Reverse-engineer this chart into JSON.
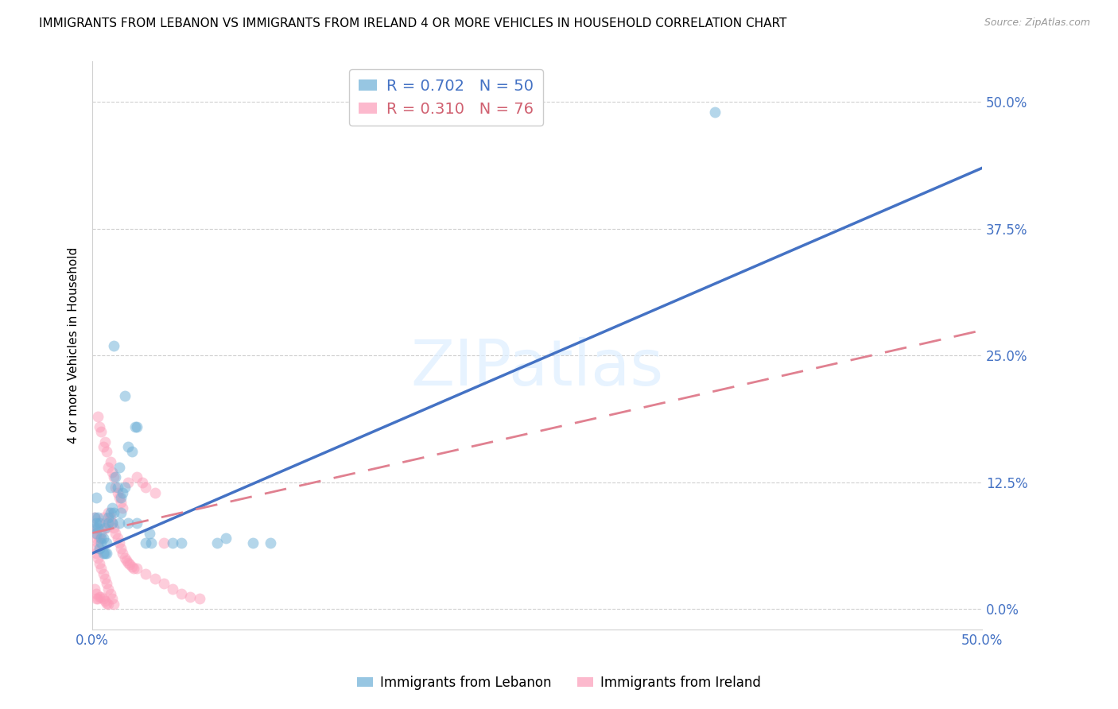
{
  "title": "IMMIGRANTS FROM LEBANON VS IMMIGRANTS FROM IRELAND 4 OR MORE VEHICLES IN HOUSEHOLD CORRELATION CHART",
  "source": "Source: ZipAtlas.com",
  "ylabel": "4 or more Vehicles in Household",
  "xlim": [
    0.0,
    0.5
  ],
  "ylim": [
    -0.02,
    0.54
  ],
  "ytick_labels": [
    "0.0%",
    "12.5%",
    "25.0%",
    "37.5%",
    "50.0%"
  ],
  "ytick_values": [
    0.0,
    0.125,
    0.25,
    0.375,
    0.5
  ],
  "xtick_values": [
    0.0,
    0.1,
    0.2,
    0.3,
    0.4,
    0.5
  ],
  "lebanon_color": "#6baed6",
  "ireland_color": "#fc9cb9",
  "lebanon_R": 0.702,
  "lebanon_N": 50,
  "ireland_R": 0.31,
  "ireland_N": 76,
  "watermark": "ZIPatlas",
  "legend_label_lebanon": "Immigrants from Lebanon",
  "legend_label_ireland": "Immigrants from Ireland",
  "lebanon_scatter": [
    [
      0.001,
      0.09
    ],
    [
      0.002,
      0.085
    ],
    [
      0.002,
      0.11
    ],
    [
      0.003,
      0.09
    ],
    [
      0.003,
      0.08
    ],
    [
      0.004,
      0.085
    ],
    [
      0.004,
      0.06
    ],
    [
      0.005,
      0.07
    ],
    [
      0.005,
      0.065
    ],
    [
      0.006,
      0.07
    ],
    [
      0.006,
      0.055
    ],
    [
      0.007,
      0.08
    ],
    [
      0.007,
      0.055
    ],
    [
      0.008,
      0.065
    ],
    [
      0.008,
      0.055
    ],
    [
      0.009,
      0.09
    ],
    [
      0.009,
      0.085
    ],
    [
      0.01,
      0.12
    ],
    [
      0.01,
      0.095
    ],
    [
      0.011,
      0.1
    ],
    [
      0.011,
      0.085
    ],
    [
      0.012,
      0.095
    ],
    [
      0.012,
      0.26
    ],
    [
      0.013,
      0.13
    ],
    [
      0.014,
      0.12
    ],
    [
      0.015,
      0.14
    ],
    [
      0.015,
      0.085
    ],
    [
      0.016,
      0.11
    ],
    [
      0.016,
      0.095
    ],
    [
      0.017,
      0.115
    ],
    [
      0.018,
      0.12
    ],
    [
      0.018,
      0.21
    ],
    [
      0.02,
      0.16
    ],
    [
      0.02,
      0.085
    ],
    [
      0.022,
      0.155
    ],
    [
      0.024,
      0.18
    ],
    [
      0.025,
      0.18
    ],
    [
      0.025,
      0.085
    ],
    [
      0.03,
      0.065
    ],
    [
      0.032,
      0.075
    ],
    [
      0.033,
      0.065
    ],
    [
      0.045,
      0.065
    ],
    [
      0.05,
      0.065
    ],
    [
      0.07,
      0.065
    ],
    [
      0.075,
      0.07
    ],
    [
      0.09,
      0.065
    ],
    [
      0.1,
      0.065
    ],
    [
      0.001,
      0.08
    ],
    [
      0.002,
      0.075
    ],
    [
      0.35,
      0.49
    ]
  ],
  "ireland_scatter": [
    [
      0.001,
      0.075
    ],
    [
      0.001,
      0.06
    ],
    [
      0.001,
      0.09
    ],
    [
      0.002,
      0.08
    ],
    [
      0.002,
      0.07
    ],
    [
      0.002,
      0.055
    ],
    [
      0.002,
      0.01
    ],
    [
      0.003,
      0.19
    ],
    [
      0.003,
      0.065
    ],
    [
      0.003,
      0.05
    ],
    [
      0.003,
      0.01
    ],
    [
      0.004,
      0.18
    ],
    [
      0.004,
      0.07
    ],
    [
      0.004,
      0.045
    ],
    [
      0.004,
      0.012
    ],
    [
      0.005,
      0.175
    ],
    [
      0.005,
      0.075
    ],
    [
      0.005,
      0.04
    ],
    [
      0.005,
      0.012
    ],
    [
      0.006,
      0.16
    ],
    [
      0.006,
      0.09
    ],
    [
      0.006,
      0.035
    ],
    [
      0.006,
      0.01
    ],
    [
      0.007,
      0.165
    ],
    [
      0.007,
      0.085
    ],
    [
      0.007,
      0.03
    ],
    [
      0.007,
      0.008
    ],
    [
      0.008,
      0.155
    ],
    [
      0.008,
      0.08
    ],
    [
      0.008,
      0.025
    ],
    [
      0.008,
      0.006
    ],
    [
      0.009,
      0.14
    ],
    [
      0.009,
      0.095
    ],
    [
      0.009,
      0.02
    ],
    [
      0.009,
      0.005
    ],
    [
      0.01,
      0.145
    ],
    [
      0.01,
      0.09
    ],
    [
      0.01,
      0.015
    ],
    [
      0.011,
      0.135
    ],
    [
      0.011,
      0.085
    ],
    [
      0.011,
      0.01
    ],
    [
      0.012,
      0.13
    ],
    [
      0.012,
      0.08
    ],
    [
      0.012,
      0.005
    ],
    [
      0.013,
      0.12
    ],
    [
      0.013,
      0.075
    ],
    [
      0.014,
      0.115
    ],
    [
      0.014,
      0.07
    ],
    [
      0.015,
      0.11
    ],
    [
      0.015,
      0.065
    ],
    [
      0.016,
      0.105
    ],
    [
      0.016,
      0.06
    ],
    [
      0.017,
      0.1
    ],
    [
      0.017,
      0.055
    ],
    [
      0.018,
      0.05
    ],
    [
      0.019,
      0.048
    ],
    [
      0.02,
      0.125
    ],
    [
      0.02,
      0.046
    ],
    [
      0.021,
      0.044
    ],
    [
      0.022,
      0.042
    ],
    [
      0.023,
      0.04
    ],
    [
      0.025,
      0.13
    ],
    [
      0.025,
      0.04
    ],
    [
      0.028,
      0.125
    ],
    [
      0.03,
      0.12
    ],
    [
      0.03,
      0.035
    ],
    [
      0.035,
      0.115
    ],
    [
      0.035,
      0.03
    ],
    [
      0.04,
      0.065
    ],
    [
      0.04,
      0.025
    ],
    [
      0.045,
      0.02
    ],
    [
      0.05,
      0.015
    ],
    [
      0.055,
      0.012
    ],
    [
      0.06,
      0.01
    ],
    [
      0.001,
      0.02
    ],
    [
      0.002,
      0.015
    ]
  ],
  "lebanon_line_x": [
    0.0,
    0.5
  ],
  "lebanon_line_y": [
    0.055,
    0.435
  ],
  "ireland_line_x": [
    0.0,
    0.5
  ],
  "ireland_line_y": [
    0.075,
    0.275
  ]
}
